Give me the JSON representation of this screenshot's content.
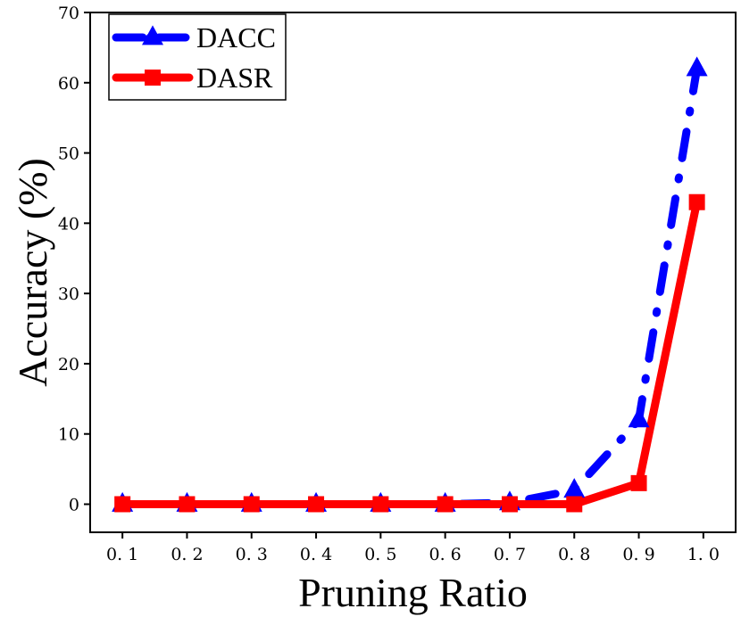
{
  "chart_data": {
    "type": "line",
    "xlabel": "Pruning Ratio",
    "ylabel": "Accuracy (%)",
    "x": [
      0.1,
      0.2,
      0.3,
      0.4,
      0.5,
      0.6,
      0.7,
      0.8,
      0.9,
      0.99
    ],
    "xticks": [
      "0. 1",
      "0. 2",
      "0. 3",
      "0. 4",
      "0. 5",
      "0. 6",
      "0. 7",
      "0. 8",
      "0. 9",
      "1. 0"
    ],
    "xtick_values": [
      0.1,
      0.2,
      0.3,
      0.4,
      0.5,
      0.6,
      0.7,
      0.8,
      0.9,
      1.0
    ],
    "xlim": [
      0.05,
      1.05
    ],
    "ylim": [
      -4,
      70
    ],
    "yticks": [
      0,
      10,
      20,
      30,
      40,
      50,
      60,
      70
    ],
    "legend_position": "top-left",
    "grid": false,
    "series": [
      {
        "name": "DACC",
        "color": "#0000ff",
        "marker": "triangle",
        "line_style": "dash-dot",
        "values": [
          0,
          0,
          0,
          0,
          0,
          0,
          0.2,
          2,
          12,
          62
        ]
      },
      {
        "name": "DASR",
        "color": "#ff0000",
        "marker": "square",
        "line_style": "solid",
        "values": [
          0,
          0,
          0,
          0,
          0,
          0,
          0,
          0,
          3,
          43
        ]
      }
    ]
  }
}
